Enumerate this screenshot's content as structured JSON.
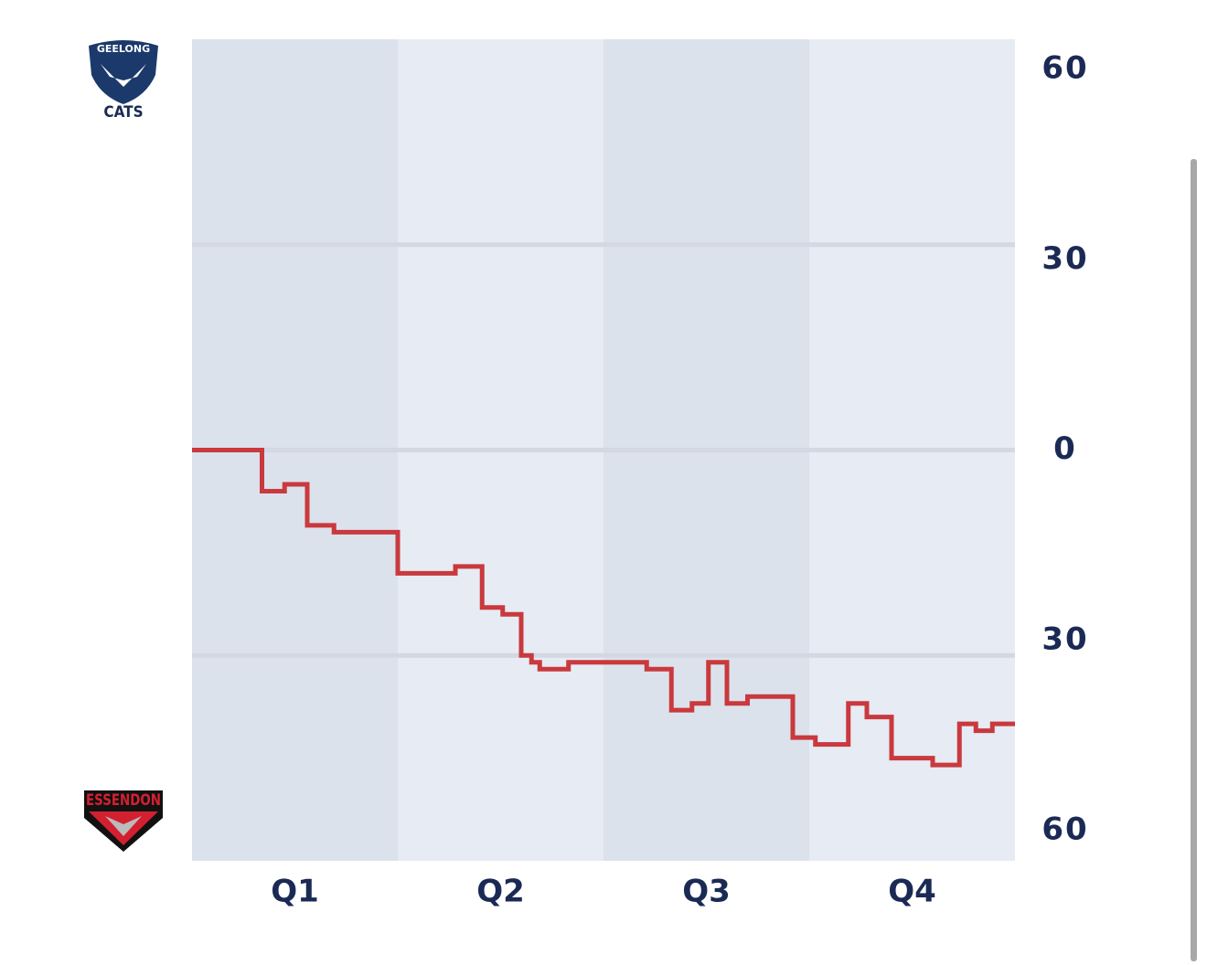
{
  "chart_data": {
    "type": "step",
    "top_team": {
      "line1": "GEELONG",
      "line2": "CATS"
    },
    "bottom_team": "ESSENDON",
    "categories": [
      "Q1",
      "Q2",
      "Q3",
      "Q4"
    ],
    "x": [
      0,
      0.34,
      0.45,
      0.56,
      0.69,
      1.0,
      1.28,
      1.41,
      1.51,
      1.6,
      1.65,
      1.69,
      1.83,
      2.21,
      2.33,
      2.43,
      2.51,
      2.6,
      2.7,
      2.92,
      3.03,
      3.19,
      3.28,
      3.4,
      3.6,
      3.73,
      3.81,
      3.89
    ],
    "values": [
      0,
      -6,
      -5,
      -11,
      -12,
      -18,
      -17,
      -23,
      -24,
      -30,
      -31,
      -32,
      -31,
      -32,
      -38,
      -37,
      -31,
      -37,
      -36,
      -42,
      -43,
      -37,
      -39,
      -45,
      -46,
      -40,
      -41,
      -40
    ],
    "color": "#c9393d",
    "xlim": [
      0,
      4
    ],
    "ylim": [
      -60,
      60
    ],
    "yticks": [
      {
        "value": 60,
        "label": "60"
      },
      30,
      0,
      {
        "value": -30,
        "label": "30"
      },
      {
        "value": -60,
        "label": "60"
      }
    ],
    "grid": true
  }
}
